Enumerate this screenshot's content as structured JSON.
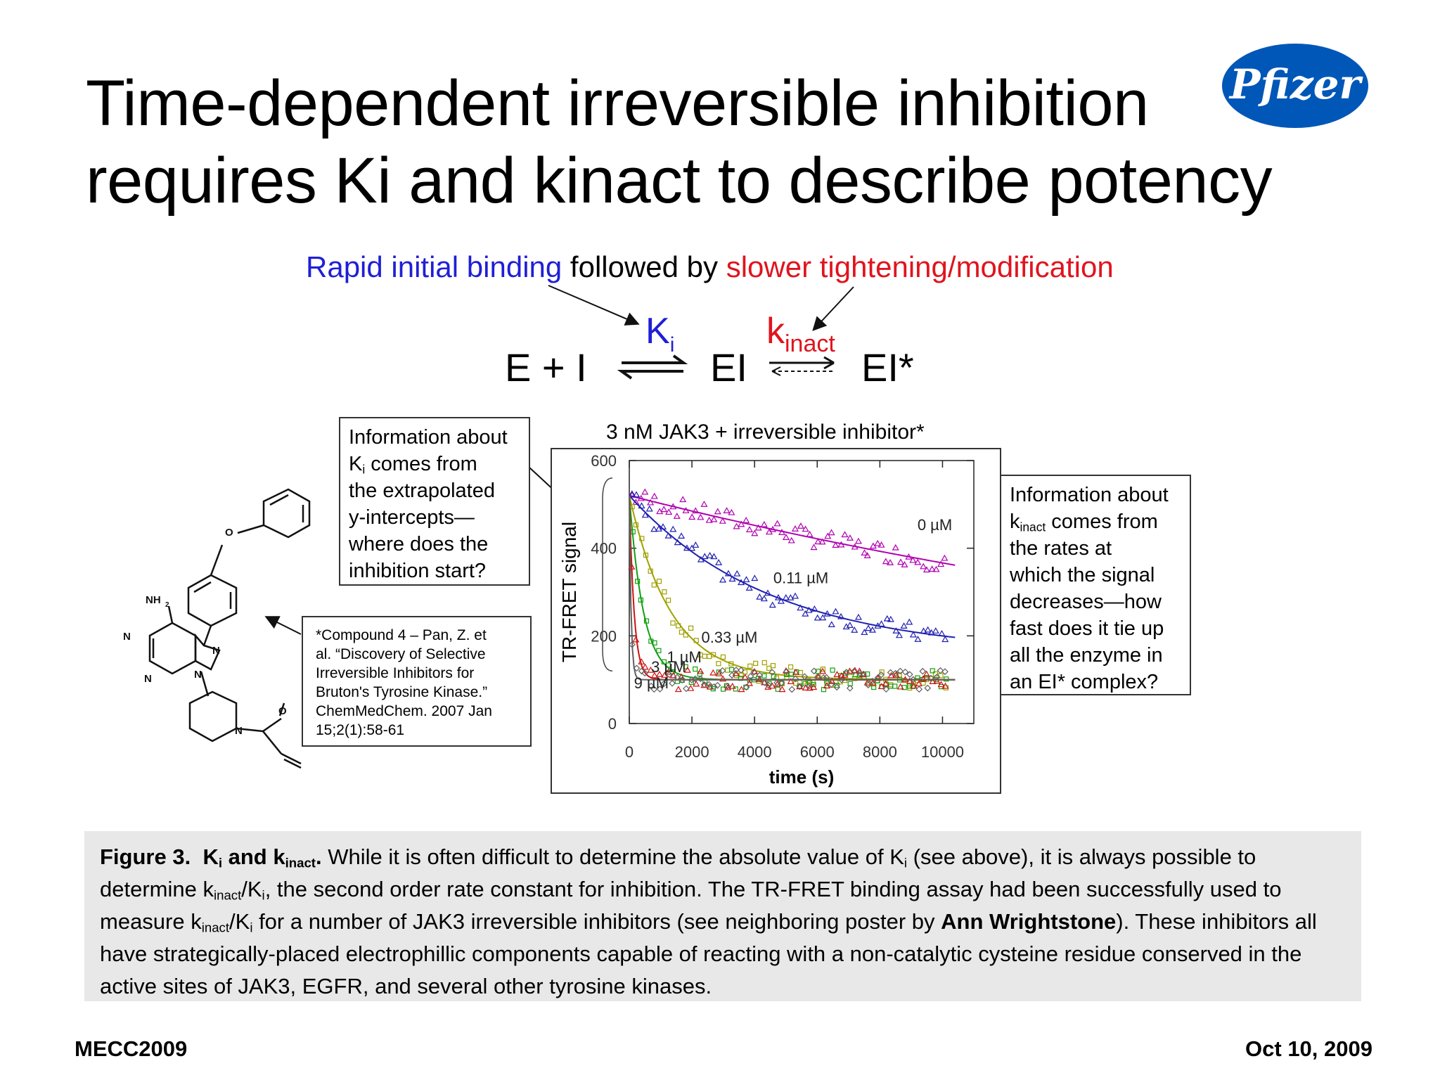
{
  "title": {
    "line1": "Time-dependent irreversible inhibition",
    "line2": "requires Ki and kinact to describe potency"
  },
  "logo": {
    "text": "Pfizer",
    "color": "#0057b8"
  },
  "subtitle": {
    "part1": "Rapid initial binding",
    "part2": " followed by ",
    "part3": "slower tightening/modification"
  },
  "equation": {
    "E_plus_I": "E + I",
    "EI": "EI",
    "EI_star": "EI*",
    "Ki_main": "K",
    "Ki_sub": "i",
    "kinact_main": "k",
    "kinact_sub": "inact"
  },
  "ki_box": {
    "line1": "Information about",
    "line2a": "K",
    "line2sub": "i",
    "line2b": " comes from",
    "line3": "the extrapolated",
    "line4": "y-intercepts—",
    "line5": "where does the",
    "line6": "inhibition start?"
  },
  "kinact_box": {
    "line1": "Information about",
    "line2a": "k",
    "line2sub": "inact",
    "line2b": " comes from",
    "line3": "the rates at",
    "line4": "which the signal",
    "line5": "decreases—how",
    "line6": "fast does it tie up",
    "line7": "all the enzyme in",
    "line8": "an EI* complex?"
  },
  "citation": {
    "line1": "*Compound 4 – Pan, Z. et",
    "line2": "al. “Discovery of Selective",
    "line3": "Irreversible Inhibitors for",
    "line4": "Bruton's Tyrosine Kinase.”",
    "line5": "ChemMedChem. 2007 Jan",
    "line6": "15;2(1):58-61"
  },
  "molecule": {
    "nh2": "NH",
    "nh2_sub": "2",
    "o": "O",
    "n": "N"
  },
  "chart_data": {
    "type": "scatter",
    "title": "3 nM JAK3 + irreversible inhibitor*",
    "xlabel": "time (s)",
    "ylabel": "TR-FRET signal",
    "xlim": [
      0,
      11000
    ],
    "ylim": [
      0,
      600
    ],
    "xticks": [
      "0",
      "2000",
      "4000",
      "6000",
      "8000",
      "10000"
    ],
    "yticks": [
      "0",
      "200",
      "400",
      "600"
    ],
    "series": [
      {
        "name": "0 µM",
        "color": "#b000b0",
        "marker": "triangle",
        "y0": 520,
        "plateau": 0,
        "k": 3.5e-05
      },
      {
        "name": "0.11 µM",
        "color": "#2020b0",
        "marker": "triangle",
        "y0": 520,
        "plateau": 160,
        "k": 0.00022
      },
      {
        "name": "0.33 µM",
        "color": "#a0a000",
        "marker": "square",
        "y0": 520,
        "plateau": 100,
        "k": 0.00075
      },
      {
        "name": "1 µM",
        "color": "#10a010",
        "marker": "square",
        "y0": 520,
        "plateau": 100,
        "k": 0.0022
      },
      {
        "name": "3 µM",
        "color": "#d01010",
        "marker": "triangle",
        "y0": 520,
        "plateau": 100,
        "k": 0.0065
      },
      {
        "name": "9 µM",
        "color": "#606060",
        "marker": "diamond",
        "y0": 520,
        "plateau": 100,
        "k": 0.018
      }
    ]
  },
  "caption": {
    "fig_label": "Figure 3.",
    "ki_k": "K",
    "ki_sub": "i",
    "and": " and k",
    "inact_sub": "inact",
    "period": ".",
    "text1": "  While it is often difficult to determine the absolute value of K",
    "text1_sub": "i",
    "text1b": " (see above), it is always possible to determine k",
    "text2_sub": "inact",
    "text2b": "/K",
    "text2_sub2": "i",
    "text2c": ", the second order rate constant for inhibition.  The TR-FRET binding assay had been successfully used to measure k",
    "text3_sub": "inact",
    "text3b": "/K",
    "text3_sub2": "i",
    "text3c": " for a number of JAK3 irreversible inhibitors (see neighboring poster by ",
    "ann": "Ann Wrightstone",
    "text4": ").  These inhibitors all have strategically-placed electrophillic components capable of reacting with a non-catalytic cysteine residue conserved in the active sites of JAK3, EGFR, and several other tyrosine kinases."
  },
  "footer": {
    "left": "MECC2009",
    "right": "Oct 10, 2009"
  }
}
